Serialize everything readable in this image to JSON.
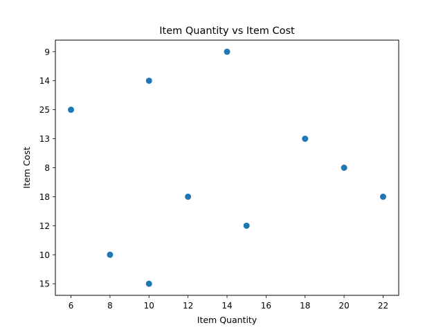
{
  "chart_data": {
    "type": "scatter",
    "title": "Item Quantity vs Item Cost",
    "xlabel": "Item Quantity",
    "ylabel": "Item Cost",
    "xlim": [
      5.2,
      22.8
    ],
    "x_ticks": [
      6,
      8,
      10,
      12,
      14,
      16,
      18,
      20,
      22
    ],
    "y_categories_bottom_to_top": [
      "15",
      "10",
      "12",
      "18",
      "8",
      "13",
      "25",
      "14",
      "9"
    ],
    "grid": false,
    "legend": "none",
    "marker_color": "#1f77b4",
    "series": [
      {
        "x": [
          10,
          8,
          15,
          12,
          22,
          20,
          18,
          6,
          10,
          14
        ],
        "y": [
          "15",
          "10",
          "12",
          "18",
          "18",
          "8",
          "13",
          "25",
          "14",
          "9"
        ]
      }
    ]
  }
}
